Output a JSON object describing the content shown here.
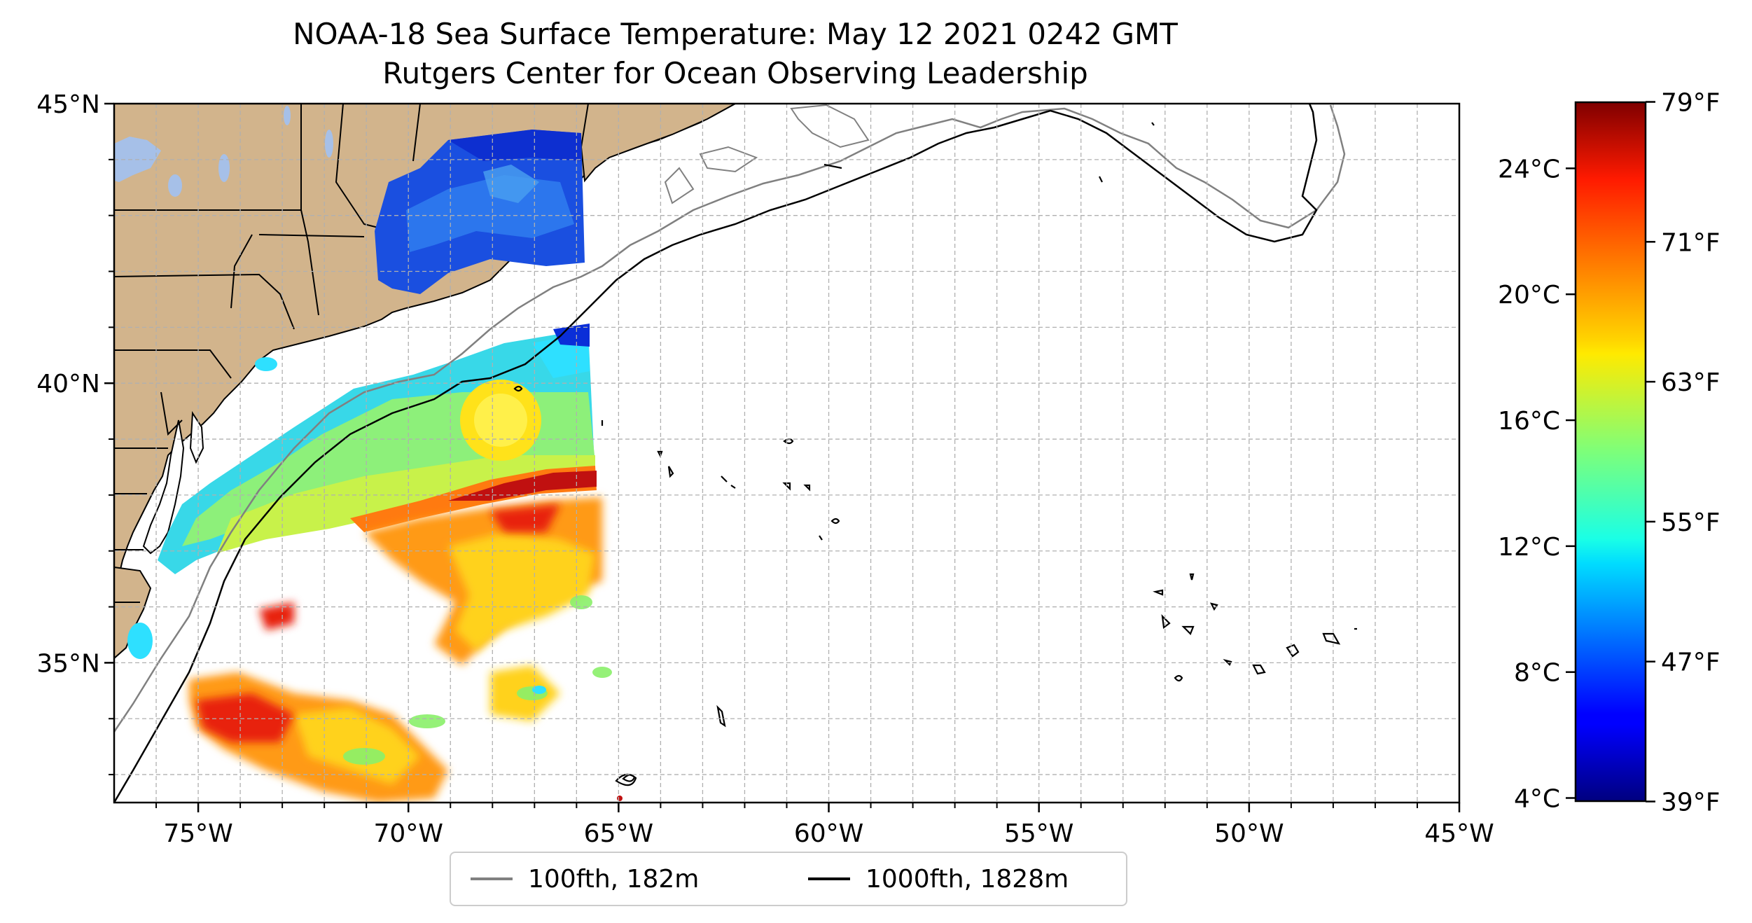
{
  "title": {
    "line1": "NOAA-18 Sea Surface Temperature: May 12 2021 0242 GMT",
    "line2": "Rutgers Center for Ocean Observing Leadership"
  },
  "map": {
    "lat_range": [
      32.5,
      45
    ],
    "lon_range": [
      -77,
      -45
    ],
    "lat_ticks": [
      {
        "value": 35,
        "label": "35°N"
      },
      {
        "value": 40,
        "label": "40°N"
      },
      {
        "value": 45,
        "label": "45°N"
      }
    ],
    "lon_ticks": [
      {
        "value": -75,
        "label": "75°W"
      },
      {
        "value": -70,
        "label": "70°W"
      },
      {
        "value": -65,
        "label": "65°W"
      },
      {
        "value": -60,
        "label": "60°W"
      },
      {
        "value": -55,
        "label": "55°W"
      },
      {
        "value": -50,
        "label": "50°W"
      },
      {
        "value": -45,
        "label": "45°W"
      }
    ],
    "gridlines": true,
    "land_color": "#d2b48c",
    "lake_color": "#a6c0e8"
  },
  "colorbar": {
    "colormap": "jet",
    "celsius_range": [
      3.9,
      26.1
    ],
    "celsius_ticks": [
      {
        "value": 4,
        "label": "4°C"
      },
      {
        "value": 8,
        "label": "8°C"
      },
      {
        "value": 12,
        "label": "12°C"
      },
      {
        "value": 16,
        "label": "16°C"
      },
      {
        "value": 20,
        "label": "20°C"
      },
      {
        "value": 24,
        "label": "24°C"
      }
    ],
    "fahrenheit_ticks": [
      {
        "value": 39,
        "label": "39°F"
      },
      {
        "value": 47,
        "label": "47°F"
      },
      {
        "value": 55,
        "label": "55°F"
      },
      {
        "value": 63,
        "label": "63°F"
      },
      {
        "value": 71,
        "label": "71°F"
      },
      {
        "value": 79,
        "label": "79°F"
      }
    ]
  },
  "legend": {
    "location": "bottom-center",
    "items": [
      {
        "label": "100fth, 182m",
        "color": "#808080"
      },
      {
        "label": "1000fth, 1828m",
        "color": "#000000"
      }
    ]
  }
}
